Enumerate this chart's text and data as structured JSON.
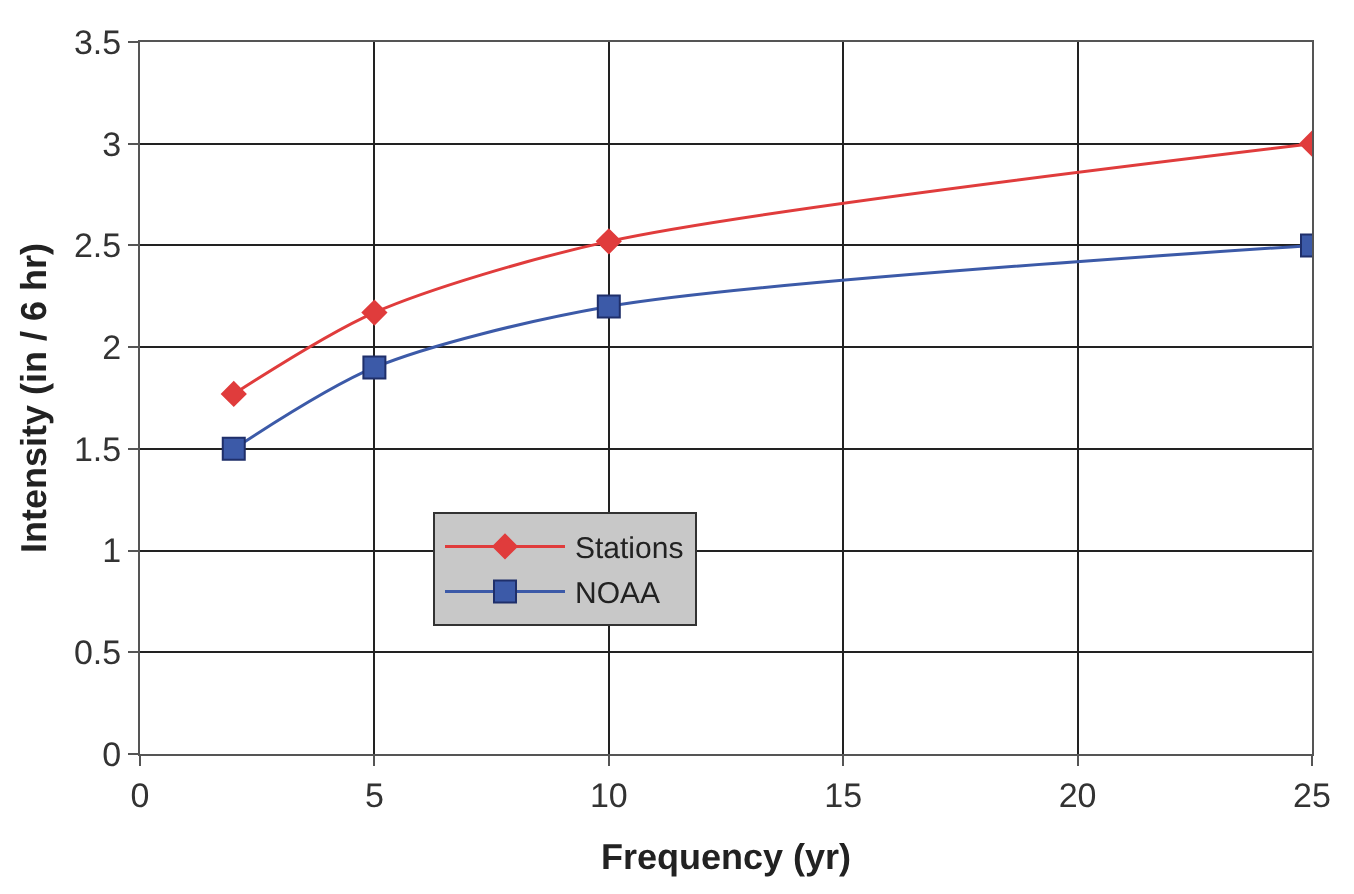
{
  "chart_data": {
    "type": "line",
    "xlabel": "Frequency (yr)",
    "ylabel": "Intensity (in / 6 hr)",
    "x": [
      2,
      5,
      10,
      25
    ],
    "series": [
      {
        "name": "Stations",
        "color": "#e03c3c",
        "values": [
          1.77,
          2.17,
          2.52,
          3.0
        ],
        "marker": "diamond"
      },
      {
        "name": "NOAA",
        "color": "#3c5aa8",
        "values": [
          1.5,
          1.9,
          2.2,
          2.5
        ],
        "marker": "square"
      }
    ],
    "xlim": [
      0,
      25
    ],
    "xticks": [
      0,
      5,
      10,
      15,
      20,
      25
    ],
    "ylim": [
      0,
      3.5
    ],
    "yticks": [
      0,
      0.5,
      1,
      1.5,
      2,
      2.5,
      3,
      3.5
    ],
    "grid": true,
    "legend": "bottom left",
    "line_style": "solid"
  }
}
